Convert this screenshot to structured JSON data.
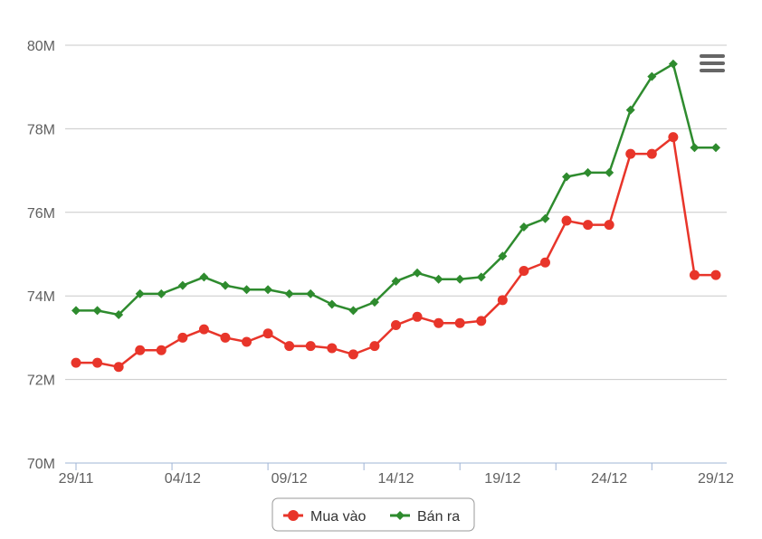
{
  "chart_data": {
    "type": "line",
    "categories": [
      "29/11",
      "30/11",
      "01/12",
      "02/12",
      "03/12",
      "04/12",
      "05/12",
      "06/12",
      "07/12",
      "08/12",
      "09/12",
      "10/12",
      "11/12",
      "12/12",
      "13/12",
      "14/12",
      "15/12",
      "16/12",
      "17/12",
      "18/12",
      "19/12",
      "20/12",
      "21/12",
      "22/12",
      "23/12",
      "24/12",
      "25/12",
      "26/12",
      "27/12",
      "28/12",
      "29/12"
    ],
    "x_tick_labels": [
      "29/11",
      "04/12",
      "09/12",
      "14/12",
      "19/12",
      "24/12",
      "29/12"
    ],
    "y_ticks": [
      70,
      72,
      74,
      76,
      78,
      80
    ],
    "y_tick_labels": [
      "70M",
      "72M",
      "74M",
      "76M",
      "78M",
      "80M"
    ],
    "ylim": [
      70,
      80
    ],
    "series": [
      {
        "name": "Mua vào",
        "color": "#e8352a",
        "marker": "circle",
        "values": [
          72.4,
          72.4,
          72.3,
          72.7,
          72.7,
          73.0,
          73.2,
          73.0,
          72.9,
          73.1,
          72.8,
          72.8,
          72.75,
          72.6,
          72.8,
          73.3,
          73.5,
          73.35,
          73.35,
          73.4,
          73.9,
          74.6,
          74.8,
          75.8,
          75.7,
          75.7,
          77.4,
          77.4,
          77.8,
          74.5,
          74.5
        ]
      },
      {
        "name": "Bán ra",
        "color": "#2e8b2e",
        "marker": "diamond",
        "values": [
          73.65,
          73.65,
          73.55,
          74.05,
          74.05,
          74.25,
          74.45,
          74.25,
          74.15,
          74.15,
          74.05,
          74.05,
          73.8,
          73.65,
          73.85,
          74.35,
          74.55,
          74.4,
          74.4,
          74.45,
          74.95,
          75.65,
          75.85,
          76.85,
          76.95,
          76.95,
          78.45,
          79.25,
          79.55,
          77.55,
          77.55
        ]
      }
    ],
    "grid": true,
    "legend_position": "bottom-center"
  },
  "menu": {
    "icon": "hamburger-menu-icon"
  }
}
